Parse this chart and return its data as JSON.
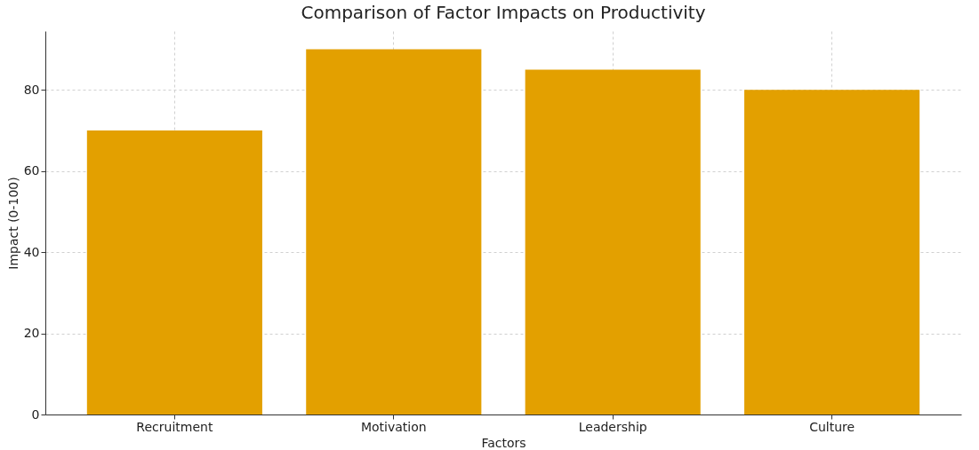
{
  "chart_data": {
    "type": "bar",
    "title": "Comparison of Factor Impacts on Productivity",
    "xlabel": "Factors",
    "ylabel": "Impact (0-100)",
    "categories": [
      "Recruitment",
      "Motivation",
      "Leadership",
      "Culture"
    ],
    "values": [
      70,
      90,
      85,
      80
    ],
    "color": "#e3a000",
    "ylim": [
      0,
      94.5
    ],
    "yticks": [
      0,
      20,
      40,
      60,
      80
    ],
    "grid": true
  }
}
